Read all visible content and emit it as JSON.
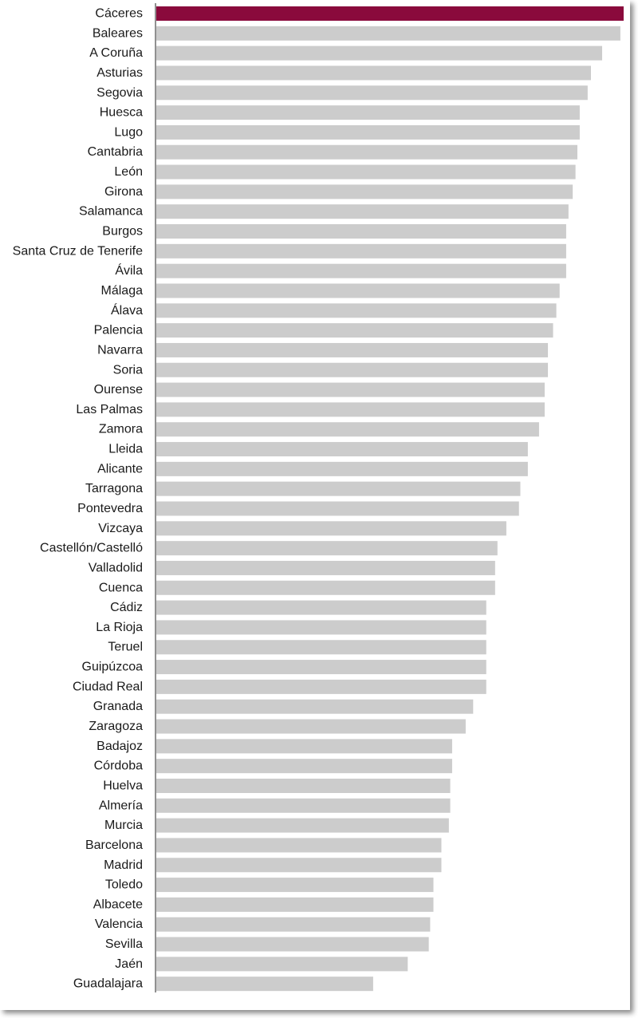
{
  "chart_data": {
    "type": "bar",
    "orientation": "horizontal",
    "categories": [
      "Cáceres",
      "Baleares",
      "A Coruña",
      "Asturias",
      "Segovia",
      "Huesca",
      "Lugo",
      "Cantabria",
      "León",
      "Girona",
      "Salamanca",
      "Burgos",
      "Santa Cruz de Tenerife",
      "Ávila",
      "Málaga",
      "Álava",
      "Palencia",
      "Navarra",
      "Soria",
      "Ourense",
      "Las Palmas",
      "Zamora",
      "Lleida",
      "Alicante",
      "Tarragona",
      "Pontevedra",
      "Vizcaya",
      "Castellón/Castelló",
      "Valladolid",
      "Cuenca",
      "Cádiz",
      "La Rioja",
      "Teruel",
      "Guipúzcoa",
      "Ciudad Real",
      "Granada",
      "Zaragoza",
      "Badajoz",
      "Córdoba",
      "Huelva",
      "Almería",
      "Murcia",
      "Barcelona",
      "Madrid",
      "Toledo",
      "Albacete",
      "Valencia",
      "Sevilla",
      "Jaén",
      "Guadalajara"
    ],
    "values": [
      100,
      99.3,
      95.4,
      93.0,
      92.3,
      90.6,
      90.6,
      90.1,
      89.7,
      89.1,
      88.2,
      87.7,
      87.7,
      87.7,
      86.3,
      85.6,
      84.9,
      83.8,
      83.8,
      83.1,
      83.1,
      81.9,
      79.5,
      79.5,
      77.9,
      77.6,
      74.9,
      73.0,
      72.5,
      72.5,
      70.6,
      70.6,
      70.6,
      70.6,
      70.6,
      67.8,
      66.2,
      63.3,
      63.3,
      62.9,
      62.9,
      62.6,
      61.0,
      61.0,
      59.3,
      59.3,
      58.6,
      58.3,
      53.8,
      46.4
    ],
    "highlight_index": 0,
    "colors": {
      "highlight": "#8a0a3c",
      "bar": "#cccccc",
      "axis": "#222222"
    },
    "xlim": [
      0,
      100
    ],
    "title": "",
    "xlabel": "",
    "ylabel": "",
    "grid": false,
    "legend": "none"
  }
}
